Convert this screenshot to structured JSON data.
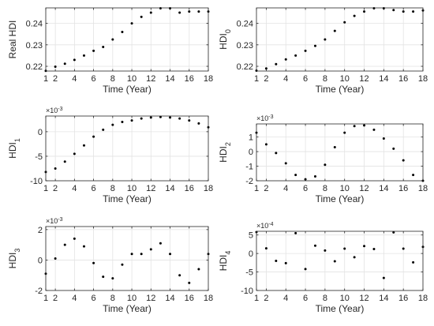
{
  "chart_data": [
    {
      "type": "scatter",
      "ylabel": "Real HDI",
      "ylabel_sub": "",
      "xlabel": "Time (Year)",
      "exponent": "",
      "xlim": [
        1,
        18
      ],
      "ylim": [
        0.2178,
        0.2472
      ],
      "xticks": [
        1,
        2,
        4,
        6,
        8,
        10,
        12,
        14,
        16,
        18
      ],
      "yticks": [
        0.22,
        0.23,
        0.24
      ],
      "ytick_labels": [
        "0.22",
        "0.23",
        "0.24"
      ],
      "grid": true,
      "x": [
        1,
        2,
        3,
        4,
        5,
        6,
        7,
        8,
        9,
        10,
        11,
        12,
        13,
        14,
        15,
        16,
        17,
        18
      ],
      "y": [
        0.2179,
        0.2198,
        0.2212,
        0.223,
        0.225,
        0.2272,
        0.229,
        0.2325,
        0.236,
        0.24,
        0.243,
        0.245,
        0.247,
        0.247,
        0.245,
        0.2455,
        0.2455,
        0.2455
      ]
    },
    {
      "type": "scatter",
      "ylabel": "HDI",
      "ylabel_sub": "0",
      "xlabel": "Time (Year)",
      "exponent": "",
      "xlim": [
        1,
        18
      ],
      "ylim": [
        0.2178,
        0.2472
      ],
      "xticks": [
        1,
        2,
        4,
        6,
        8,
        10,
        12,
        14,
        16,
        18
      ],
      "yticks": [
        0.22,
        0.23,
        0.24
      ],
      "ytick_labels": [
        "0.22",
        "0.23",
        "0.24"
      ],
      "grid": true,
      "x": [
        1,
        2,
        3,
        4,
        5,
        6,
        7,
        8,
        9,
        10,
        11,
        12,
        13,
        14,
        15,
        16,
        17,
        18
      ],
      "y": [
        0.218,
        0.219,
        0.221,
        0.2232,
        0.225,
        0.2272,
        0.2295,
        0.2325,
        0.2365,
        0.2405,
        0.2435,
        0.2455,
        0.247,
        0.247,
        0.2462,
        0.2455,
        0.2455,
        0.246
      ]
    },
    {
      "type": "scatter",
      "ylabel": "HDI",
      "ylabel_sub": "1",
      "xlabel": "Time (Year)",
      "exponent": "-3",
      "xlim": [
        1,
        18
      ],
      "ylim": [
        -10,
        3.2
      ],
      "xticks": [
        1,
        2,
        4,
        6,
        8,
        10,
        12,
        14,
        16,
        18
      ],
      "yticks": [
        -10,
        -5,
        0
      ],
      "ytick_labels": [
        "-10",
        "-5",
        "0"
      ],
      "grid": true,
      "x": [
        1,
        2,
        3,
        4,
        5,
        6,
        7,
        8,
        9,
        10,
        11,
        12,
        13,
        14,
        15,
        16,
        17,
        18
      ],
      "y": [
        -8.2,
        -7.5,
        -6.1,
        -4.5,
        -2.8,
        -1.0,
        0.4,
        1.4,
        2.0,
        2.3,
        2.7,
        2.9,
        3.0,
        2.9,
        2.7,
        2.3,
        1.7,
        0.9
      ]
    },
    {
      "type": "scatter",
      "ylabel": "HDI",
      "ylabel_sub": "2",
      "xlabel": "Time (Year)",
      "exponent": "-3",
      "xlim": [
        1,
        18
      ],
      "ylim": [
        -2,
        1.9
      ],
      "xticks": [
        1,
        2,
        4,
        6,
        8,
        10,
        12,
        14,
        16,
        18
      ],
      "yticks": [
        -2,
        -1,
        0,
        1
      ],
      "ytick_labels": [
        "-2",
        "-1",
        "0",
        "1"
      ],
      "grid": true,
      "x": [
        1,
        2,
        3,
        4,
        5,
        6,
        7,
        8,
        9,
        10,
        11,
        12,
        13,
        14,
        15,
        16,
        17,
        18
      ],
      "y": [
        1.3,
        0.5,
        -0.1,
        -0.8,
        -1.6,
        -1.9,
        -1.7,
        -0.9,
        0.3,
        1.3,
        1.75,
        1.8,
        1.5,
        0.9,
        0.2,
        -0.6,
        -1.6,
        -2.0
      ]
    },
    {
      "type": "scatter",
      "ylabel": "HDI",
      "ylabel_sub": "3",
      "xlabel": "Time (Year)",
      "exponent": "-3",
      "xlim": [
        1,
        18
      ],
      "ylim": [
        -2,
        2.2
      ],
      "xticks": [
        1,
        2,
        4,
        6,
        8,
        10,
        12,
        14,
        16,
        18
      ],
      "yticks": [
        -2,
        0,
        2
      ],
      "ytick_labels": [
        "-2",
        "0",
        "2"
      ],
      "grid": true,
      "x": [
        1,
        2,
        3,
        4,
        5,
        6,
        7,
        8,
        9,
        10,
        11,
        12,
        13,
        14,
        15,
        16,
        17,
        18
      ],
      "y": [
        -0.9,
        0.1,
        1.0,
        1.4,
        0.9,
        -0.2,
        -1.1,
        -1.2,
        -0.3,
        0.4,
        0.4,
        0.7,
        1.1,
        0.4,
        -1.0,
        -1.5,
        -0.6,
        0.4
      ]
    },
    {
      "type": "scatter",
      "ylabel": "HDI",
      "ylabel_sub": "4",
      "xlabel": "Time (Year)",
      "exponent": "-4",
      "xlim": [
        1,
        18
      ],
      "ylim": [
        -10,
        6
      ],
      "xticks": [
        1,
        2,
        4,
        6,
        8,
        10,
        12,
        14,
        16,
        18
      ],
      "yticks": [
        -10,
        -5,
        0,
        5
      ],
      "ytick_labels": [
        "-10",
        "-5",
        "0",
        "5"
      ],
      "grid": true,
      "x": [
        1,
        2,
        3,
        4,
        5,
        6,
        7,
        8,
        9,
        10,
        11,
        12,
        13,
        14,
        15,
        16,
        17,
        18
      ],
      "y": [
        5.8,
        1.4,
        -2.0,
        -2.6,
        5.5,
        -4.2,
        2.1,
        0.8,
        -2.1,
        1.3,
        -1.0,
        2.0,
        1.2,
        -6.6,
        5.7,
        1.3,
        -2.4,
        1.8
      ]
    }
  ]
}
